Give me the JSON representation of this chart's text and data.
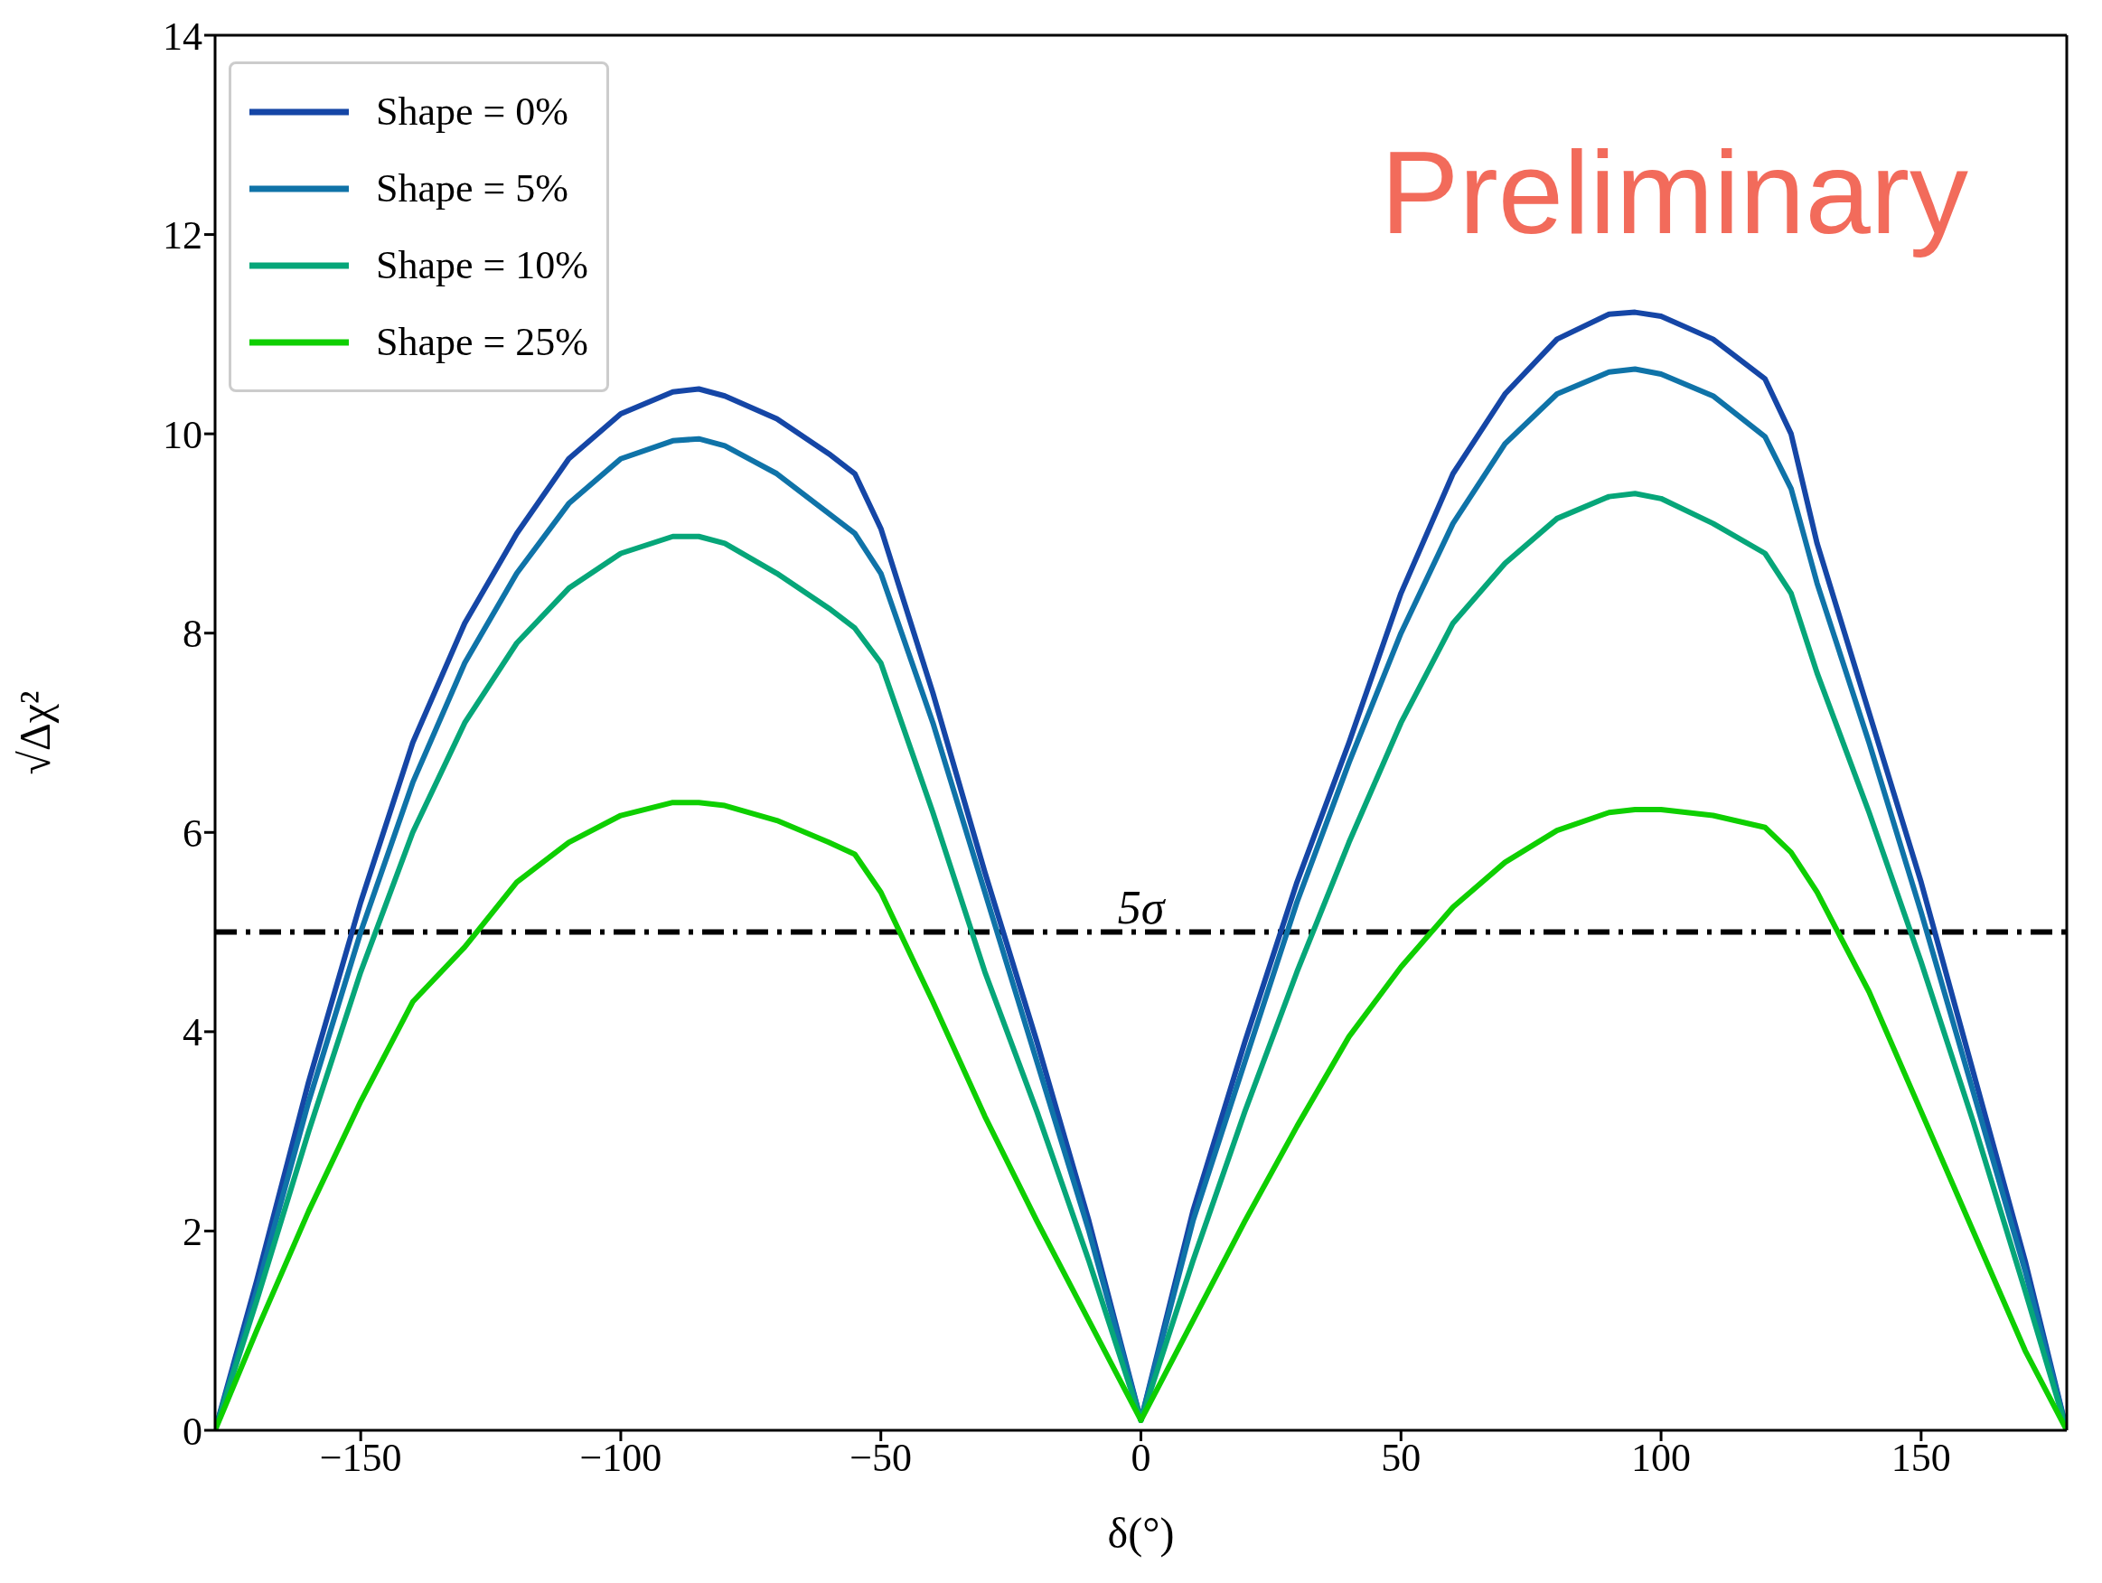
{
  "chart_data": {
    "type": "line",
    "xlabel": "δ(°)",
    "ylabel": "√Δχ²",
    "xlim": [
      -178,
      178
    ],
    "ylim": [
      0,
      14
    ],
    "xticks": [
      -150,
      -100,
      -50,
      0,
      50,
      100,
      150
    ],
    "yticks": [
      0,
      2,
      4,
      6,
      8,
      10,
      12,
      14
    ],
    "grid": false,
    "legend": "top left",
    "marker": "none",
    "line_style": "solid",
    "x": [
      -178,
      -170,
      -160,
      -150,
      -140,
      -130,
      -120,
      -110,
      -100,
      -90,
      -85,
      -80,
      -70,
      -60,
      -55,
      -50,
      -40,
      -30,
      -20,
      -10,
      0,
      10,
      20,
      30,
      40,
      50,
      60,
      70,
      80,
      90,
      95,
      100,
      110,
      120,
      125,
      130,
      140,
      150,
      160,
      170,
      178
    ],
    "series": [
      {
        "name": "Shape = 0%",
        "color": "#1546a6",
        "values": [
          0,
          1.5,
          3.5,
          5.3,
          6.9,
          8.1,
          9.0,
          9.75,
          10.2,
          10.42,
          10.45,
          10.38,
          10.15,
          9.8,
          9.6,
          9.05,
          7.4,
          5.6,
          3.9,
          2.1,
          0.1,
          2.2,
          3.9,
          5.5,
          6.9,
          8.4,
          9.6,
          10.4,
          10.95,
          11.2,
          11.22,
          11.18,
          10.95,
          10.55,
          10.0,
          8.9,
          7.2,
          5.5,
          3.6,
          1.7,
          0
        ]
      },
      {
        "name": "Shape = 5%",
        "color": "#0f73a8",
        "values": [
          0,
          1.4,
          3.3,
          5.0,
          6.5,
          7.7,
          8.6,
          9.3,
          9.75,
          9.93,
          9.95,
          9.88,
          9.6,
          9.2,
          9.0,
          8.6,
          7.1,
          5.4,
          3.7,
          2.0,
          0.1,
          2.1,
          3.7,
          5.3,
          6.7,
          8.0,
          9.1,
          9.9,
          10.4,
          10.62,
          10.65,
          10.6,
          10.38,
          9.97,
          9.45,
          8.5,
          6.9,
          5.2,
          3.4,
          1.6,
          0
        ]
      },
      {
        "name": "Shape = 10%",
        "color": "#06a679",
        "values": [
          0,
          1.3,
          3.0,
          4.6,
          6.0,
          7.1,
          7.9,
          8.45,
          8.8,
          8.97,
          8.97,
          8.9,
          8.6,
          8.25,
          8.05,
          7.7,
          6.2,
          4.6,
          3.2,
          1.7,
          0.1,
          1.7,
          3.2,
          4.6,
          5.9,
          7.1,
          8.1,
          8.7,
          9.15,
          9.37,
          9.4,
          9.35,
          9.1,
          8.8,
          8.4,
          7.6,
          6.2,
          4.7,
          3.1,
          1.4,
          0
        ]
      },
      {
        "name": "Shape = 25%",
        "color": "#0ecf00",
        "values": [
          0,
          1.0,
          2.2,
          3.3,
          4.3,
          4.85,
          5.5,
          5.9,
          6.17,
          6.3,
          6.3,
          6.27,
          6.12,
          5.9,
          5.78,
          5.4,
          4.3,
          3.15,
          2.1,
          1.1,
          0.1,
          1.1,
          2.1,
          3.05,
          3.95,
          4.65,
          5.25,
          5.7,
          6.02,
          6.2,
          6.23,
          6.23,
          6.17,
          6.05,
          5.8,
          5.4,
          4.4,
          3.2,
          2.0,
          0.8,
          0
        ]
      }
    ],
    "ref_lines": [
      {
        "axis": "y",
        "value": 5,
        "label": "5σ",
        "color": "#000000",
        "line_style": "dashdot"
      }
    ],
    "annotations": [
      "Preliminary"
    ]
  }
}
